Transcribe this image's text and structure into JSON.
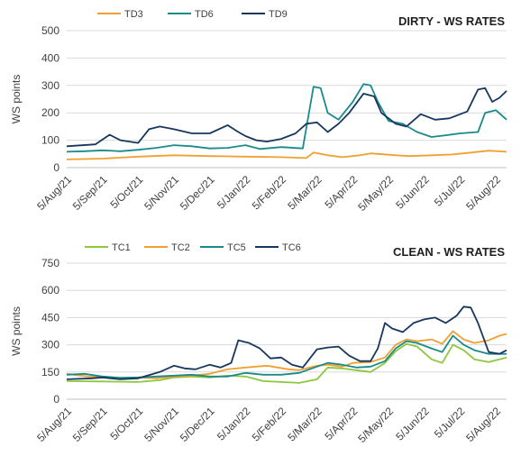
{
  "chart_data": [
    {
      "type": "line",
      "title": "DIRTY - WS RATES",
      "ylabel": "WS points",
      "xlabel": "",
      "ylim": [
        0,
        500
      ],
      "yticks": [
        0,
        100,
        200,
        300,
        400,
        500
      ],
      "xlim": [
        0,
        12.3
      ],
      "xtick_labels": [
        "5/Aug/21",
        "5/Sep/21",
        "5/Oct/21",
        "5/Nov/21",
        "5/Dec/21",
        "5/Jan/22",
        "5/Feb/22",
        "5/Mar/22",
        "5/Apr/22",
        "5/May/22",
        "5/Jun/22",
        "5/Jul/22",
        "5/Aug/22"
      ],
      "grid": "horizontal",
      "legend": "top-left",
      "series": [
        {
          "name": "TD3",
          "color": "#f0a030",
          "points": [
            [
              0,
              30
            ],
            [
              1,
              33
            ],
            [
              2,
              40
            ],
            [
              3,
              45
            ],
            [
              4,
              42
            ],
            [
              5,
              40
            ],
            [
              6,
              38
            ],
            [
              6.7,
              35
            ],
            [
              6.9,
              55
            ],
            [
              7.3,
              45
            ],
            [
              7.7,
              38
            ],
            [
              8.2,
              45
            ],
            [
              8.5,
              52
            ],
            [
              9.2,
              45
            ],
            [
              9.6,
              42
            ],
            [
              10.2,
              45
            ],
            [
              10.8,
              48
            ],
            [
              11.3,
              55
            ],
            [
              11.8,
              62
            ],
            [
              12.3,
              58
            ]
          ]
        },
        {
          "name": "TD6",
          "color": "#1a8a8a",
          "points": [
            [
              0,
              58
            ],
            [
              0.5,
              60
            ],
            [
              1,
              63
            ],
            [
              1.5,
              60
            ],
            [
              2,
              65
            ],
            [
              2.5,
              72
            ],
            [
              3,
              82
            ],
            [
              3.5,
              78
            ],
            [
              4,
              70
            ],
            [
              4.5,
              72
            ],
            [
              5,
              82
            ],
            [
              5.4,
              68
            ],
            [
              6,
              75
            ],
            [
              6.6,
              70
            ],
            [
              6.9,
              295
            ],
            [
              7.1,
              290
            ],
            [
              7.3,
              200
            ],
            [
              7.6,
              175
            ],
            [
              8,
              240
            ],
            [
              8.3,
              305
            ],
            [
              8.5,
              300
            ],
            [
              8.7,
              240
            ],
            [
              9,
              170
            ],
            [
              9.4,
              160
            ],
            [
              9.8,
              130
            ],
            [
              10.2,
              112
            ],
            [
              10.6,
              118
            ],
            [
              11,
              125
            ],
            [
              11.5,
              130
            ],
            [
              11.7,
              200
            ],
            [
              12,
              210
            ],
            [
              12.3,
              175
            ]
          ]
        },
        {
          "name": "TD9",
          "color": "#17375e",
          "points": [
            [
              0,
              78
            ],
            [
              0.8,
              85
            ],
            [
              1.2,
              120
            ],
            [
              1.5,
              100
            ],
            [
              2,
              90
            ],
            [
              2.3,
              140
            ],
            [
              2.6,
              150
            ],
            [
              3,
              140
            ],
            [
              3.5,
              125
            ],
            [
              4,
              125
            ],
            [
              4.5,
              155
            ],
            [
              4.8,
              130
            ],
            [
              5,
              115
            ],
            [
              5.3,
              100
            ],
            [
              5.6,
              95
            ],
            [
              6,
              105
            ],
            [
              6.4,
              125
            ],
            [
              6.7,
              160
            ],
            [
              7,
              165
            ],
            [
              7.3,
              130
            ],
            [
              7.6,
              160
            ],
            [
              7.9,
              200
            ],
            [
              8.3,
              270
            ],
            [
              8.6,
              260
            ],
            [
              8.8,
              200
            ],
            [
              9.2,
              160
            ],
            [
              9.5,
              150
            ],
            [
              9.9,
              195
            ],
            [
              10.3,
              175
            ],
            [
              10.7,
              180
            ],
            [
              11.2,
              205
            ],
            [
              11.5,
              285
            ],
            [
              11.7,
              290
            ],
            [
              11.9,
              240
            ],
            [
              12.1,
              255
            ],
            [
              12.3,
              280
            ]
          ]
        }
      ]
    },
    {
      "type": "line",
      "title": "CLEAN - WS RATES",
      "ylabel": "WS points",
      "xlabel": "",
      "ylim": [
        0,
        750
      ],
      "yticks": [
        0,
        150,
        300,
        450,
        600,
        750
      ],
      "xlim": [
        0,
        12.3
      ],
      "xtick_labels": [
        "5/Aug/21",
        "5/Sep/21",
        "5/Oct/21",
        "5/Nov/21",
        "5/Dec/21",
        "5/Jan/22",
        "5/Feb/22",
        "5/Mar/22",
        "5/Apr/22",
        "5/May/22",
        "5/Jun/22",
        "5/Jul/22",
        "5/Aug/22"
      ],
      "grid": "horizontal",
      "legend": "top-left",
      "series": [
        {
          "name": "TC1",
          "color": "#8dc63f",
          "points": [
            [
              0,
              100
            ],
            [
              1,
              98
            ],
            [
              2,
              95
            ],
            [
              2.6,
              105
            ],
            [
              3,
              120
            ],
            [
              3.5,
              125
            ],
            [
              4,
              120
            ],
            [
              4.5,
              130
            ],
            [
              5,
              125
            ],
            [
              5.5,
              100
            ],
            [
              6,
              95
            ],
            [
              6.5,
              90
            ],
            [
              7,
              110
            ],
            [
              7.3,
              175
            ],
            [
              7.7,
              170
            ],
            [
              8.1,
              160
            ],
            [
              8.5,
              150
            ],
            [
              8.9,
              200
            ],
            [
              9.2,
              265
            ],
            [
              9.5,
              305
            ],
            [
              9.8,
              290
            ],
            [
              10.2,
              220
            ],
            [
              10.5,
              200
            ],
            [
              10.8,
              300
            ],
            [
              11.1,
              270
            ],
            [
              11.4,
              220
            ],
            [
              11.8,
              205
            ],
            [
              12.3,
              230
            ]
          ]
        },
        {
          "name": "TC2",
          "color": "#f0a030",
          "points": [
            [
              0,
              140
            ],
            [
              0.6,
              125
            ],
            [
              1,
              120
            ],
            [
              1.5,
              115
            ],
            [
              2,
              120
            ],
            [
              2.5,
              115
            ],
            [
              3,
              125
            ],
            [
              3.5,
              130
            ],
            [
              4,
              140
            ],
            [
              4.5,
              165
            ],
            [
              5,
              175
            ],
            [
              5.3,
              180
            ],
            [
              5.6,
              185
            ],
            [
              5.9,
              175
            ],
            [
              6.2,
              165
            ],
            [
              6.5,
              160
            ],
            [
              7,
              185
            ],
            [
              7.3,
              190
            ],
            [
              7.7,
              180
            ],
            [
              8,
              200
            ],
            [
              8.5,
              205
            ],
            [
              8.9,
              230
            ],
            [
              9.2,
              300
            ],
            [
              9.5,
              330
            ],
            [
              9.8,
              320
            ],
            [
              10.2,
              330
            ],
            [
              10.5,
              305
            ],
            [
              10.8,
              375
            ],
            [
              11.1,
              330
            ],
            [
              11.4,
              310
            ],
            [
              11.8,
              325
            ],
            [
              12.1,
              350
            ],
            [
              12.3,
              360
            ]
          ]
        },
        {
          "name": "TC5",
          "color": "#1a8a8a",
          "points": [
            [
              0,
              135
            ],
            [
              0.5,
              140
            ],
            [
              1,
              125
            ],
            [
              1.5,
              118
            ],
            [
              2,
              120
            ],
            [
              2.5,
              125
            ],
            [
              3,
              130
            ],
            [
              3.5,
              135
            ],
            [
              4,
              125
            ],
            [
              4.5,
              125
            ],
            [
              5,
              145
            ],
            [
              5.5,
              135
            ],
            [
              6,
              135
            ],
            [
              6.5,
              145
            ],
            [
              7,
              180
            ],
            [
              7.3,
              200
            ],
            [
              7.7,
              190
            ],
            [
              8.1,
              175
            ],
            [
              8.5,
              180
            ],
            [
              8.9,
              210
            ],
            [
              9.2,
              280
            ],
            [
              9.5,
              320
            ],
            [
              9.8,
              310
            ],
            [
              10.2,
              280
            ],
            [
              10.5,
              260
            ],
            [
              10.8,
              350
            ],
            [
              11.1,
              300
            ],
            [
              11.4,
              270
            ],
            [
              11.8,
              250
            ],
            [
              12.3,
              250
            ]
          ]
        },
        {
          "name": "TC6",
          "color": "#17375e",
          "points": [
            [
              0,
              110
            ],
            [
              0.7,
              115
            ],
            [
              1,
              120
            ],
            [
              1.5,
              110
            ],
            [
              2,
              115
            ],
            [
              2.6,
              150
            ],
            [
              3,
              185
            ],
            [
              3.3,
              170
            ],
            [
              3.6,
              165
            ],
            [
              4,
              190
            ],
            [
              4.3,
              175
            ],
            [
              4.6,
              200
            ],
            [
              4.8,
              325
            ],
            [
              5.1,
              310
            ],
            [
              5.4,
              280
            ],
            [
              5.7,
              225
            ],
            [
              6,
              230
            ],
            [
              6.3,
              190
            ],
            [
              6.6,
              175
            ],
            [
              7,
              275
            ],
            [
              7.3,
              285
            ],
            [
              7.6,
              290
            ],
            [
              7.9,
              240
            ],
            [
              8.2,
              210
            ],
            [
              8.5,
              210
            ],
            [
              8.7,
              280
            ],
            [
              8.9,
              420
            ],
            [
              9.1,
              390
            ],
            [
              9.4,
              370
            ],
            [
              9.7,
              420
            ],
            [
              10,
              440
            ],
            [
              10.3,
              450
            ],
            [
              10.6,
              420
            ],
            [
              10.9,
              460
            ],
            [
              11.1,
              510
            ],
            [
              11.3,
              505
            ],
            [
              11.5,
              420
            ],
            [
              11.8,
              260
            ],
            [
              12.1,
              250
            ],
            [
              12.3,
              270
            ]
          ]
        }
      ]
    }
  ]
}
